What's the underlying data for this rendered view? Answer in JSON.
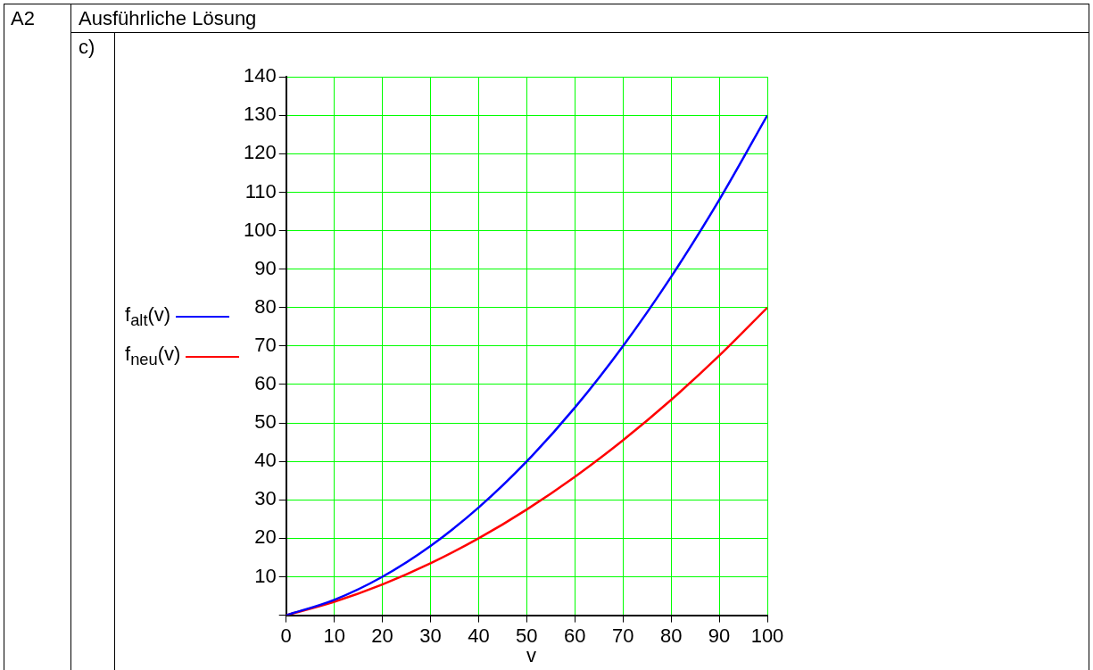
{
  "chart_data": {
    "type": "line",
    "title": "Ausführliche Lösung",
    "annotations": [
      "A2",
      "c)"
    ],
    "xlabel": "v",
    "x": [
      0,
      10,
      20,
      30,
      40,
      50,
      60,
      70,
      80,
      90,
      100
    ],
    "series": [
      {
        "name": "f$_{alt}$(v)",
        "color": "#0000ff",
        "values": [
          0,
          4,
          10,
          18,
          28,
          40,
          54,
          70,
          88,
          108,
          130
        ]
      },
      {
        "name": "f$_{neu}$(v)",
        "color": "#ff0000",
        "values": [
          0,
          3.5,
          8,
          13.5,
          20,
          27.5,
          36,
          45.5,
          56,
          67.5,
          80
        ]
      }
    ],
    "xlim": [
      0,
      100
    ],
    "xticks": [
      0,
      10,
      20,
      30,
      40,
      50,
      60,
      70,
      80,
      90,
      100
    ],
    "ylim": [
      0,
      140
    ],
    "yticks": [
      {
        "value": 0,
        "label": null
      },
      10,
      20,
      30,
      40,
      50,
      60,
      70,
      80,
      90,
      100,
      110,
      120,
      130,
      140
    ],
    "grid": true,
    "legend": "left",
    "marker": "none",
    "line_style": "solid"
  }
}
